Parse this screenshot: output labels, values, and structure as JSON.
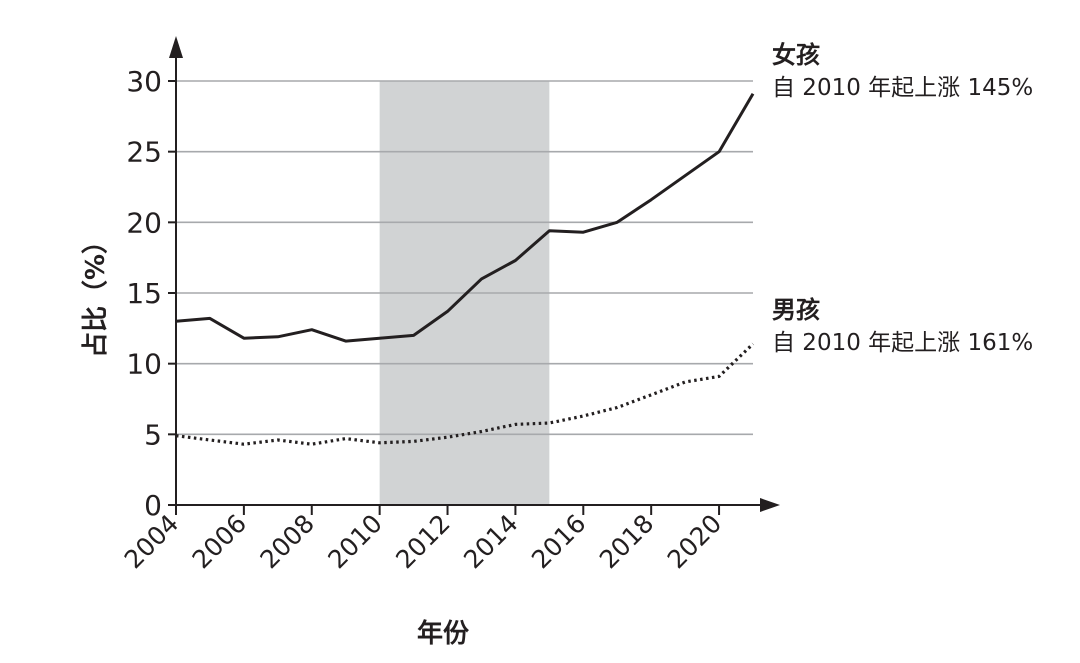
{
  "chart_data": {
    "type": "line",
    "xlabel": "年份",
    "ylabel": "占比（%）",
    "xlim": [
      2004,
      2021
    ],
    "ylim": [
      0,
      30
    ],
    "yticks": [
      0,
      5,
      10,
      15,
      20,
      25,
      30
    ],
    "xticks": [
      2004,
      2006,
      2008,
      2010,
      2012,
      2014,
      2016,
      2018,
      2020
    ],
    "grid": "horizontal",
    "shaded_region": [
      2010,
      2015
    ],
    "series": [
      {
        "name": "女孩",
        "annotation": "自 2010 年起上涨 145%",
        "style": "solid",
        "x": [
          2004,
          2005,
          2006,
          2007,
          2008,
          2009,
          2010,
          2011,
          2012,
          2013,
          2014,
          2015,
          2016,
          2017,
          2018,
          2019,
          2020,
          2021
        ],
        "values": [
          13.0,
          13.2,
          11.8,
          11.9,
          12.4,
          11.6,
          11.8,
          12.0,
          13.7,
          16.0,
          17.3,
          19.4,
          19.3,
          20.0,
          21.6,
          23.3,
          25.0,
          29.1
        ]
      },
      {
        "name": "男孩",
        "annotation": "自 2010 年起上涨 161%",
        "style": "dotted",
        "x": [
          2004,
          2005,
          2006,
          2007,
          2008,
          2009,
          2010,
          2011,
          2012,
          2013,
          2014,
          2015,
          2016,
          2017,
          2018,
          2019,
          2020,
          2021
        ],
        "values": [
          4.9,
          4.6,
          4.3,
          4.6,
          4.3,
          4.7,
          4.4,
          4.5,
          4.8,
          5.2,
          5.7,
          5.8,
          6.3,
          6.9,
          7.8,
          8.7,
          9.1,
          11.4
        ]
      }
    ],
    "colors": {
      "line": "#231f20",
      "grid": "#a7a9ac",
      "shade": "#d1d3d4"
    }
  }
}
